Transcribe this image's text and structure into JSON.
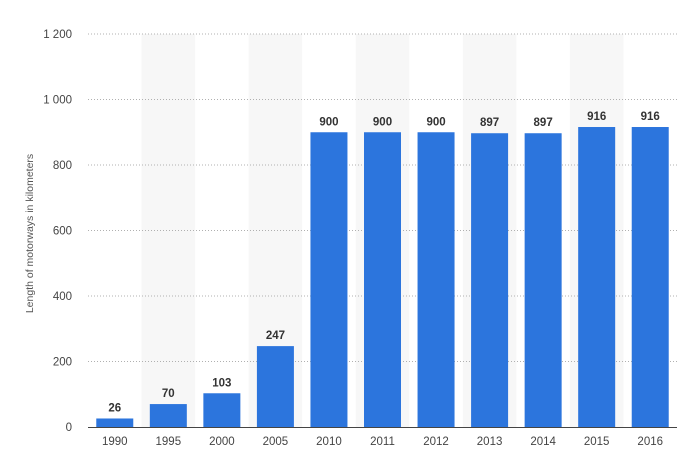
{
  "chart_data": {
    "type": "bar",
    "title": "",
    "xlabel": "",
    "ylabel": "Length of motorways in kilometers",
    "categories": [
      "1990",
      "1995",
      "2000",
      "2005",
      "2010",
      "2011",
      "2012",
      "2013",
      "2014",
      "2015",
      "2016"
    ],
    "values": [
      26,
      70,
      103,
      247,
      900,
      900,
      900,
      897,
      897,
      916,
      916
    ],
    "data_labels": [
      "26",
      "70",
      "103",
      "247",
      "900",
      "900",
      "900",
      "897",
      "897",
      "916",
      "916"
    ],
    "ylim": [
      0,
      1200
    ],
    "yticks": [
      0,
      200,
      400,
      600,
      800,
      1000,
      1200
    ],
    "ytick_labels": [
      "0",
      "200",
      "400",
      "600",
      "800",
      "1 000",
      "1 200"
    ],
    "grid": true,
    "grid_style": "dotted",
    "alternating_column_bands": true,
    "legend": "none",
    "colors": {
      "bar": "#2c75dd",
      "band": "#f7f7f7",
      "grid": "#b0b0b0",
      "axis": "#444444"
    }
  }
}
